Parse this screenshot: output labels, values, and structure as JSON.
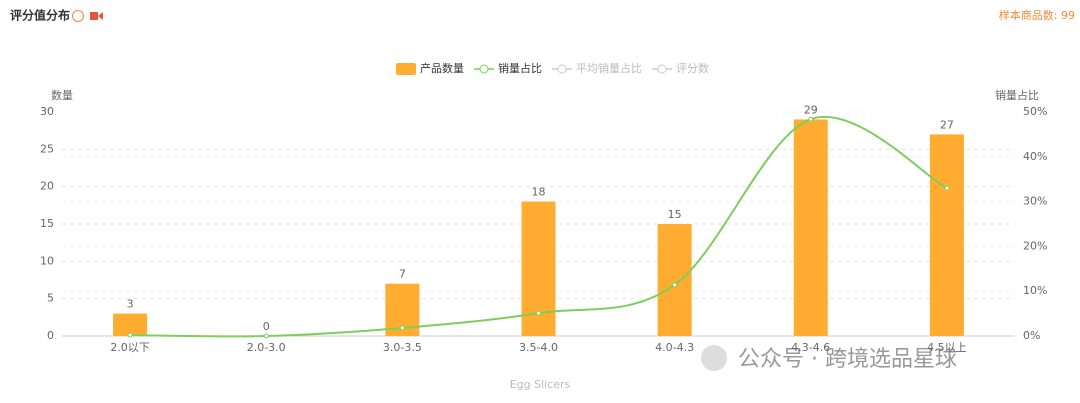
{
  "header": {
    "title": "评分值分布",
    "sample": "样本商品数: 99"
  },
  "chart_data": {
    "type": "bar_line",
    "categories": [
      "2.0以下",
      "2.0-3.0",
      "3.0-3.5",
      "3.5-4.0",
      "4.0-4.3",
      "4.3-4.6",
      "4.5以上"
    ],
    "series": [
      {
        "name": "产品数量",
        "color": "#ffac30",
        "type": "bar",
        "values": [
          3,
          0,
          7,
          18,
          15,
          29,
          27
        ]
      },
      {
        "name": "销量占比",
        "color": "#7ccf5d",
        "type": "line",
        "axis": "y2",
        "values": [
          0.2,
          0,
          1.8,
          5.1,
          11.4,
          48.4,
          33
        ]
      }
    ],
    "hidden_series": [
      {
        "name": "平均销量占比",
        "color": "#cccccc"
      },
      {
        "name": "评分数",
        "color": "#cccccc"
      }
    ],
    "ylabel": "数量",
    "y2label": "销量占比",
    "xlabel": "Egg Slicers",
    "ylim": [
      0,
      30
    ],
    "yticks": [
      0,
      5,
      10,
      15,
      20,
      25,
      30
    ],
    "y2lim": [
      0,
      50
    ],
    "y2ticks": [
      {
        "value": 0,
        "label": "0%"
      },
      {
        "value": 10,
        "label": "10%"
      },
      {
        "value": 20,
        "label": "20%"
      },
      {
        "value": 30,
        "label": "30%"
      },
      {
        "value": 40,
        "label": "40%"
      },
      {
        "value": 50,
        "label": "50%"
      }
    ],
    "grid": true
  },
  "watermark": "公众号 · 跨境选品星球"
}
